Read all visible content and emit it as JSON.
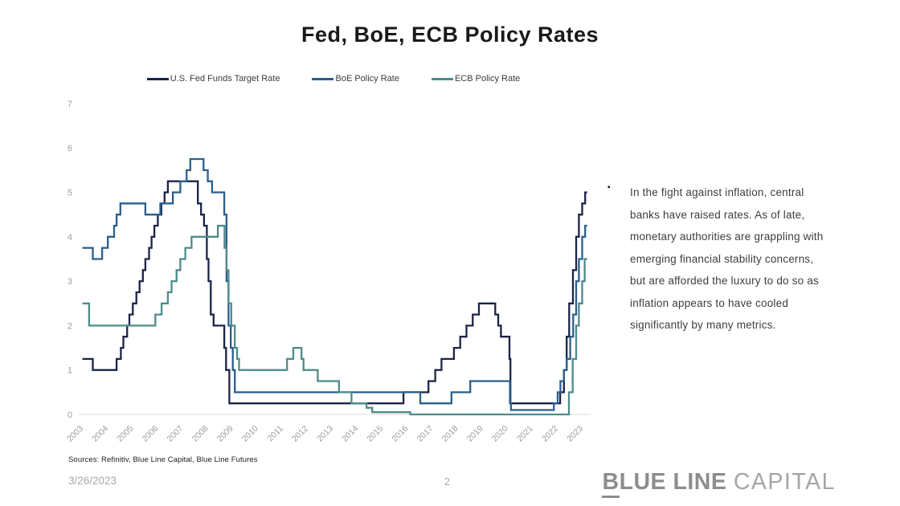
{
  "title": "Fed, BoE, ECB Policy Rates",
  "legend": [
    {
      "label": "U.S. Fed Funds Target Rate",
      "color": "#1b2347"
    },
    {
      "label": "BoE Policy Rate",
      "color": "#2a5f8c"
    },
    {
      "label": "ECB Policy Rate",
      "color": "#4d8b8b"
    }
  ],
  "chart_data": {
    "type": "line",
    "step": true,
    "title": "Fed, BoE, ECB Policy Rates",
    "xlabel": "",
    "ylabel": "",
    "x_domain": [
      2003,
      2023.35
    ],
    "x_end": 2023.28,
    "ylim": [
      0,
      7
    ],
    "y_ticks": [
      0,
      1,
      2,
      3,
      4,
      5,
      6,
      7
    ],
    "x_ticks": [
      2003,
      2004,
      2005,
      2006,
      2007,
      2008,
      2009,
      2010,
      2011,
      2012,
      2013,
      2014,
      2015,
      2016,
      2017,
      2018,
      2019,
      2020,
      2021,
      2022,
      2023
    ],
    "grid": false,
    "legend_position": "top",
    "axis_color": "#d8d8d8",
    "tick_label_color": "#9c9c9c",
    "series": [
      {
        "name": "U.S. Fed Funds Target Rate",
        "color": "#1b2347",
        "points": [
          [
            2003.08,
            1.25
          ],
          [
            2003.5,
            1.0
          ],
          [
            2004.45,
            1.25
          ],
          [
            2004.62,
            1.5
          ],
          [
            2004.72,
            1.75
          ],
          [
            2004.87,
            2.0
          ],
          [
            2004.96,
            2.25
          ],
          [
            2005.1,
            2.5
          ],
          [
            2005.24,
            2.75
          ],
          [
            2005.37,
            3.0
          ],
          [
            2005.5,
            3.25
          ],
          [
            2005.6,
            3.5
          ],
          [
            2005.75,
            3.75
          ],
          [
            2005.85,
            4.0
          ],
          [
            2005.96,
            4.25
          ],
          [
            2006.1,
            4.5
          ],
          [
            2006.24,
            4.75
          ],
          [
            2006.37,
            5.0
          ],
          [
            2006.5,
            5.25
          ],
          [
            2007.7,
            4.75
          ],
          [
            2007.83,
            4.5
          ],
          [
            2007.95,
            4.25
          ],
          [
            2008.06,
            3.5
          ],
          [
            2008.13,
            3.0
          ],
          [
            2008.22,
            2.25
          ],
          [
            2008.33,
            2.0
          ],
          [
            2008.76,
            1.5
          ],
          [
            2008.83,
            1.0
          ],
          [
            2008.96,
            0.25
          ],
          [
            2015.93,
            0.5
          ],
          [
            2016.93,
            0.75
          ],
          [
            2017.2,
            1.0
          ],
          [
            2017.45,
            1.25
          ],
          [
            2017.95,
            1.5
          ],
          [
            2018.2,
            1.75
          ],
          [
            2018.45,
            2.0
          ],
          [
            2018.7,
            2.25
          ],
          [
            2018.95,
            2.5
          ],
          [
            2019.6,
            2.25
          ],
          [
            2019.72,
            2.0
          ],
          [
            2019.83,
            1.75
          ],
          [
            2020.17,
            1.25
          ],
          [
            2020.21,
            0.25
          ],
          [
            2022.2,
            0.5
          ],
          [
            2022.35,
            1.0
          ],
          [
            2022.46,
            1.75
          ],
          [
            2022.56,
            2.5
          ],
          [
            2022.71,
            3.25
          ],
          [
            2022.84,
            4.0
          ],
          [
            2022.95,
            4.5
          ],
          [
            2023.08,
            4.75
          ],
          [
            2023.2,
            5.0
          ]
        ]
      },
      {
        "name": "BoE Policy Rate",
        "color": "#2a5f8c",
        "points": [
          [
            2003.08,
            3.75
          ],
          [
            2003.5,
            3.5
          ],
          [
            2003.87,
            3.75
          ],
          [
            2004.1,
            4.0
          ],
          [
            2004.35,
            4.25
          ],
          [
            2004.45,
            4.5
          ],
          [
            2004.6,
            4.75
          ],
          [
            2005.6,
            4.5
          ],
          [
            2006.2,
            4.75
          ],
          [
            2006.7,
            5.0
          ],
          [
            2007.0,
            5.25
          ],
          [
            2007.25,
            5.5
          ],
          [
            2007.4,
            5.75
          ],
          [
            2007.93,
            5.5
          ],
          [
            2008.1,
            5.25
          ],
          [
            2008.27,
            5.0
          ],
          [
            2008.76,
            4.5
          ],
          [
            2008.85,
            3.0
          ],
          [
            2008.93,
            2.0
          ],
          [
            2009.02,
            1.5
          ],
          [
            2009.1,
            1.0
          ],
          [
            2009.18,
            0.5
          ],
          [
            2016.6,
            0.25
          ],
          [
            2017.85,
            0.5
          ],
          [
            2018.6,
            0.75
          ],
          [
            2020.19,
            0.25
          ],
          [
            2020.23,
            0.1
          ],
          [
            2021.95,
            0.25
          ],
          [
            2022.1,
            0.5
          ],
          [
            2022.21,
            0.75
          ],
          [
            2022.35,
            1.0
          ],
          [
            2022.46,
            1.25
          ],
          [
            2022.6,
            1.75
          ],
          [
            2022.72,
            2.25
          ],
          [
            2022.84,
            3.0
          ],
          [
            2022.95,
            3.5
          ],
          [
            2023.08,
            4.0
          ],
          [
            2023.2,
            4.25
          ]
        ]
      },
      {
        "name": "ECB Policy Rate",
        "color": "#4d8b8b",
        "points": [
          [
            2003.08,
            2.5
          ],
          [
            2003.35,
            2.0
          ],
          [
            2006.0,
            2.25
          ],
          [
            2006.25,
            2.5
          ],
          [
            2006.5,
            2.75
          ],
          [
            2006.65,
            3.0
          ],
          [
            2006.85,
            3.25
          ],
          [
            2007.0,
            3.5
          ],
          [
            2007.2,
            3.75
          ],
          [
            2007.45,
            4.0
          ],
          [
            2008.5,
            4.25
          ],
          [
            2008.77,
            3.75
          ],
          [
            2008.85,
            3.25
          ],
          [
            2008.93,
            2.5
          ],
          [
            2009.04,
            2.0
          ],
          [
            2009.18,
            1.5
          ],
          [
            2009.27,
            1.25
          ],
          [
            2009.35,
            1.0
          ],
          [
            2011.27,
            1.25
          ],
          [
            2011.52,
            1.5
          ],
          [
            2011.85,
            1.25
          ],
          [
            2011.93,
            1.0
          ],
          [
            2012.5,
            0.75
          ],
          [
            2013.35,
            0.5
          ],
          [
            2013.85,
            0.25
          ],
          [
            2014.45,
            0.15
          ],
          [
            2014.68,
            0.05
          ],
          [
            2016.2,
            0.0
          ],
          [
            2022.55,
            0.5
          ],
          [
            2022.7,
            1.25
          ],
          [
            2022.84,
            2.0
          ],
          [
            2022.95,
            2.5
          ],
          [
            2023.08,
            3.0
          ],
          [
            2023.18,
            3.5
          ]
        ]
      }
    ]
  },
  "annotation": {
    "bullet": "▪",
    "text": "In the fight against inflation, central\nbanks have raised rates. As of late,\nmonetary authorities are grappling with\nemerging financial stability concerns,\nbut are afforded the luxury to do so as\ninflation appears to have cooled\nsignificantly by many metrics."
  },
  "footer": {
    "sources": "Sources: Refinitiv, Blue Line Capital, Blue Line Futures",
    "date": "3/26/2023",
    "page": "2",
    "logo_b": "B",
    "logo_bold_rest": "LUE LINE",
    "logo_light": "CAPITAL"
  }
}
